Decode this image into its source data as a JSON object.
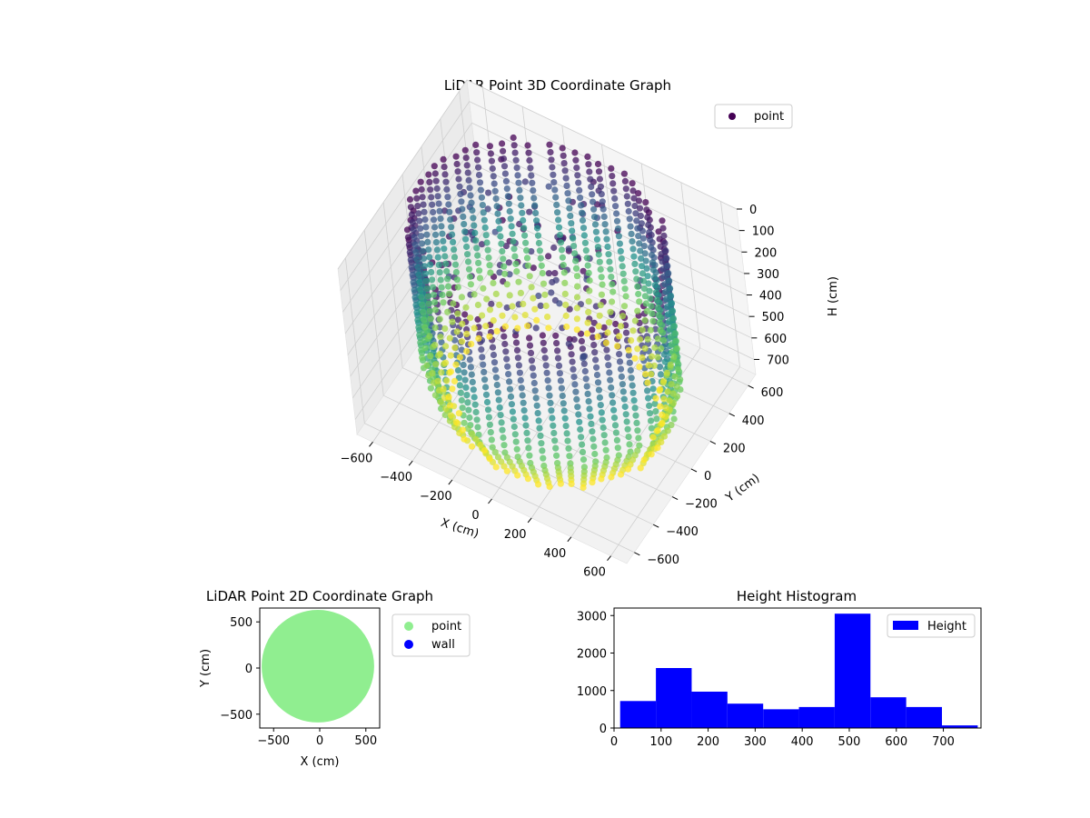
{
  "figure": {
    "background": "#ffffff"
  },
  "chart_data": [
    {
      "id": "scatter3d",
      "type": "scatter",
      "title": "LiDAR Point 3D Coordinate Graph",
      "xlabel": "X (cm)",
      "ylabel": "Y (cm)",
      "zlabel": "H (cm)",
      "xlim": [
        -680,
        680
      ],
      "ylim": [
        -680,
        680
      ],
      "zlim": [
        0,
        770
      ],
      "z_inverted": true,
      "xticks": [
        -600,
        -400,
        -200,
        0,
        200,
        400,
        600
      ],
      "yticks": [
        -600,
        -400,
        -200,
        0,
        200,
        400,
        600
      ],
      "zticks": [
        0,
        100,
        200,
        300,
        400,
        500,
        600,
        700
      ],
      "colormap": "viridis",
      "legend": {
        "position": "top-right",
        "entries": [
          {
            "label": "point",
            "color": "#440154"
          }
        ]
      },
      "series": [
        {
          "name": "point",
          "description_of_shape": "vertical scan columns arranged around a ring of radius about 600 cm, heights 0 to 770 cm, colored by height",
          "ring_radius": 600,
          "angle_start_deg": 120,
          "angle_end_deg": 470,
          "column_count": 60,
          "height_range": [
            0,
            770
          ]
        }
      ],
      "grid": true
    },
    {
      "id": "scatter2d",
      "type": "scatter",
      "title": "LiDAR Point 2D Coordinate Graph",
      "xlabel": "X (cm)",
      "ylabel": "Y (cm)",
      "xlim": [
        -650,
        650
      ],
      "ylim": [
        -650,
        650
      ],
      "xticks": [
        -500,
        0,
        500
      ],
      "yticks": [
        -500,
        0,
        500
      ],
      "legend": {
        "position": "outside-right",
        "entries": [
          {
            "label": "point",
            "color": "#90ee90"
          },
          {
            "label": "wall",
            "color": "#0000ff"
          }
        ]
      },
      "series": [
        {
          "name": "point",
          "color": "#90ee90",
          "shape": "filled disc",
          "radius": 610
        },
        {
          "name": "wall",
          "color": "#0000ff",
          "points": []
        }
      ],
      "grid": false
    },
    {
      "id": "histogram",
      "type": "bar",
      "title": "Height Histogram",
      "xlabel": "",
      "ylabel": "",
      "xlim": [
        0,
        780
      ],
      "ylim": [
        0,
        3200
      ],
      "xticks": [
        0,
        100,
        200,
        300,
        400,
        500,
        600,
        700
      ],
      "yticks": [
        0,
        1000,
        2000,
        3000
      ],
      "bin_edges": [
        13,
        89,
        165,
        241,
        317,
        393,
        469,
        545,
        621,
        697,
        773
      ],
      "values": [
        720,
        1600,
        970,
        650,
        500,
        560,
        3050,
        820,
        560,
        70
      ],
      "color": "#0000ff",
      "legend": {
        "position": "top-right",
        "entries": [
          {
            "label": "Height",
            "color": "#0000ff"
          }
        ]
      },
      "grid": false
    }
  ]
}
